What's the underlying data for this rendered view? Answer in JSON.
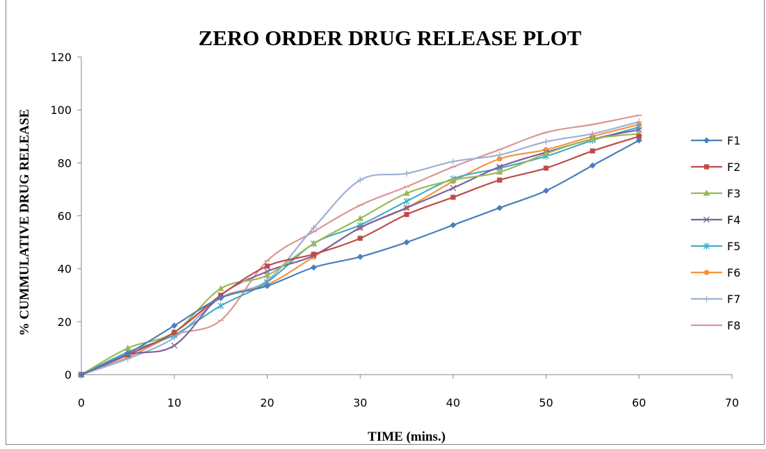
{
  "chart_data": {
    "type": "line",
    "title": "ZERO ORDER DRUG RELEASE PLOT",
    "xlabel": "TIME (mins.)",
    "ylabel": "% CUMMULATIVE DRUG RELEASE",
    "xlim": [
      0,
      70
    ],
    "ylim": [
      0,
      120
    ],
    "xticks": [
      0,
      10,
      20,
      30,
      40,
      50,
      60,
      70
    ],
    "yticks": [
      0,
      20,
      40,
      60,
      80,
      100,
      120
    ],
    "grid": false,
    "legend_position": "right",
    "x": [
      0,
      5,
      10,
      15,
      20,
      25,
      30,
      35,
      40,
      45,
      50,
      55,
      60
    ],
    "series": [
      {
        "name": "F1",
        "color": "#4a7ebb",
        "marker": "diamond",
        "values": [
          0,
          8,
          18.5,
          29,
          33.5,
          40.5,
          44.5,
          50,
          56.5,
          63,
          69.5,
          79,
          88.5
        ]
      },
      {
        "name": "F2",
        "color": "#be4b48",
        "marker": "square",
        "values": [
          0,
          7.5,
          16,
          30,
          41,
          45.5,
          51.5,
          60.5,
          67,
          73.5,
          78,
          84.5,
          90
        ]
      },
      {
        "name": "F3",
        "color": "#98b954",
        "marker": "triangle",
        "values": [
          0,
          10,
          16,
          32.5,
          37.5,
          49.5,
          59,
          68.5,
          73.5,
          76.5,
          83.5,
          89,
          91
        ]
      },
      {
        "name": "F4",
        "color": "#7d60a0",
        "marker": "x",
        "values": [
          0,
          7.5,
          11,
          30,
          39,
          45,
          55.5,
          63,
          70.5,
          78.5,
          84,
          89,
          92.5
        ]
      },
      {
        "name": "F5",
        "color": "#46aac5",
        "marker": "star",
        "values": [
          0,
          8.5,
          15,
          26,
          35,
          49.5,
          56.5,
          65.5,
          74,
          78,
          82.5,
          88.5,
          93.5
        ]
      },
      {
        "name": "F6",
        "color": "#f69240",
        "marker": "circle",
        "values": [
          0,
          7.5,
          16,
          29,
          34,
          44.5,
          55.5,
          63,
          73,
          81.5,
          85,
          90,
          94.5
        ]
      },
      {
        "name": "F7",
        "color": "#9dafd3",
        "marker": "plus",
        "values": [
          0,
          6,
          14,
          29,
          35.5,
          55.5,
          73.5,
          76,
          80.5,
          83,
          88,
          91,
          95.5
        ]
      },
      {
        "name": "F8",
        "color": "#d99694",
        "marker": "dash",
        "values": [
          0,
          6.5,
          15,
          20.5,
          43,
          54,
          64,
          71,
          78.5,
          85,
          91.5,
          94.5,
          98
        ]
      }
    ]
  }
}
